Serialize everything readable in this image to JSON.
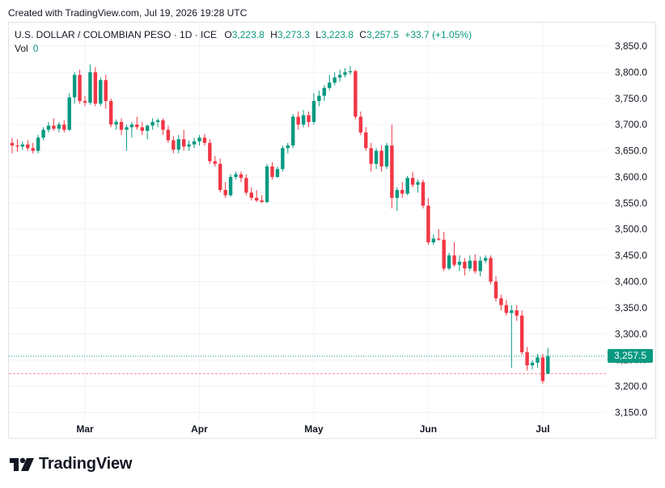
{
  "header": {
    "created_text": "Created with TradingView.com, Jul 19, 2026 19:28 UTC"
  },
  "legend": {
    "symbol": "U.S. DOLLAR / COLOMBIAN PESO · 1D · ICE",
    "o_label": "O",
    "o_value": "3,223.8",
    "h_label": "H",
    "h_value": "3,273.3",
    "l_label": "L",
    "l_value": "3,223.8",
    "c_label": "C",
    "c_value": "3,257.5",
    "change": "+33.7 (+1.05%)",
    "vol_label": "Vol",
    "vol_value": "0"
  },
  "last_price_label": "3,257.5",
  "colors": {
    "up": "#089981",
    "down": "#f23645",
    "grid": "#f0f3fa",
    "text": "#131722"
  },
  "footer": {
    "brand": "TradingView",
    "logo_icon": "tradingview-logo-icon"
  },
  "chart_data": {
    "type": "candlestick",
    "title": "U.S. DOLLAR / COLOMBIAN PESO · 1D · ICE",
    "ylim": [
      3130,
      3870
    ],
    "y_ticks": [
      3150,
      3200,
      3250,
      3300,
      3350,
      3400,
      3450,
      3500,
      3550,
      3600,
      3650,
      3700,
      3750,
      3800,
      3850
    ],
    "y_tick_labels": [
      "3,150.0",
      "3,200.0",
      "3,250.0",
      "3,300.0",
      "3,350.0",
      "3,400.0",
      "3,450.0",
      "3,500.0",
      "3,550.0",
      "3,600.0",
      "3,650.0",
      "3,700.0",
      "3,750.0",
      "3,800.0",
      "3,850.0"
    ],
    "x_tick_labels": [
      {
        "label": "Mar",
        "index": 14
      },
      {
        "label": "Apr",
        "index": 36
      },
      {
        "label": "May",
        "index": 58
      },
      {
        "label": "Jun",
        "index": 80
      },
      {
        "label": "Jul",
        "index": 102
      }
    ],
    "last_price": 3257.5,
    "grid": true,
    "candles": [
      {
        "o": 3665,
        "h": 3675,
        "l": 3645,
        "c": 3660
      },
      {
        "o": 3660,
        "h": 3672,
        "l": 3648,
        "c": 3658
      },
      {
        "o": 3658,
        "h": 3668,
        "l": 3652,
        "c": 3662
      },
      {
        "o": 3662,
        "h": 3670,
        "l": 3650,
        "c": 3655
      },
      {
        "o": 3655,
        "h": 3665,
        "l": 3645,
        "c": 3650
      },
      {
        "o": 3650,
        "h": 3680,
        "l": 3645,
        "c": 3675
      },
      {
        "o": 3675,
        "h": 3695,
        "l": 3670,
        "c": 3690
      },
      {
        "o": 3690,
        "h": 3705,
        "l": 3685,
        "c": 3698
      },
      {
        "o": 3698,
        "h": 3712,
        "l": 3688,
        "c": 3692
      },
      {
        "o": 3692,
        "h": 3705,
        "l": 3685,
        "c": 3700
      },
      {
        "o": 3700,
        "h": 3708,
        "l": 3685,
        "c": 3690
      },
      {
        "o": 3690,
        "h": 3760,
        "l": 3688,
        "c": 3752
      },
      {
        "o": 3752,
        "h": 3800,
        "l": 3740,
        "c": 3795
      },
      {
        "o": 3795,
        "h": 3805,
        "l": 3740,
        "c": 3745
      },
      {
        "o": 3745,
        "h": 3755,
        "l": 3735,
        "c": 3742
      },
      {
        "o": 3742,
        "h": 3815,
        "l": 3738,
        "c": 3800
      },
      {
        "o": 3800,
        "h": 3810,
        "l": 3735,
        "c": 3740
      },
      {
        "o": 3740,
        "h": 3790,
        "l": 3736,
        "c": 3785
      },
      {
        "o": 3785,
        "h": 3795,
        "l": 3730,
        "c": 3745
      },
      {
        "o": 3745,
        "h": 3750,
        "l": 3695,
        "c": 3700
      },
      {
        "o": 3700,
        "h": 3710,
        "l": 3690,
        "c": 3705
      },
      {
        "o": 3705,
        "h": 3712,
        "l": 3680,
        "c": 3690
      },
      {
        "o": 3690,
        "h": 3700,
        "l": 3650,
        "c": 3695
      },
      {
        "o": 3695,
        "h": 3705,
        "l": 3675,
        "c": 3700
      },
      {
        "o": 3700,
        "h": 3715,
        "l": 3690,
        "c": 3695
      },
      {
        "o": 3695,
        "h": 3705,
        "l": 3680,
        "c": 3688
      },
      {
        "o": 3688,
        "h": 3700,
        "l": 3672,
        "c": 3698
      },
      {
        "o": 3698,
        "h": 3712,
        "l": 3690,
        "c": 3705
      },
      {
        "o": 3705,
        "h": 3712,
        "l": 3695,
        "c": 3708
      },
      {
        "o": 3708,
        "h": 3712,
        "l": 3680,
        "c": 3690
      },
      {
        "o": 3690,
        "h": 3698,
        "l": 3665,
        "c": 3670
      },
      {
        "o": 3670,
        "h": 3678,
        "l": 3645,
        "c": 3652
      },
      {
        "o": 3652,
        "h": 3680,
        "l": 3645,
        "c": 3672
      },
      {
        "o": 3672,
        "h": 3690,
        "l": 3650,
        "c": 3658
      },
      {
        "o": 3658,
        "h": 3670,
        "l": 3650,
        "c": 3662
      },
      {
        "o": 3662,
        "h": 3675,
        "l": 3655,
        "c": 3668
      },
      {
        "o": 3668,
        "h": 3680,
        "l": 3660,
        "c": 3675
      },
      {
        "o": 3675,
        "h": 3682,
        "l": 3660,
        "c": 3665
      },
      {
        "o": 3665,
        "h": 3672,
        "l": 3625,
        "c": 3630
      },
      {
        "o": 3630,
        "h": 3640,
        "l": 3620,
        "c": 3625
      },
      {
        "o": 3625,
        "h": 3635,
        "l": 3570,
        "c": 3575
      },
      {
        "o": 3575,
        "h": 3590,
        "l": 3560,
        "c": 3565
      },
      {
        "o": 3565,
        "h": 3605,
        "l": 3562,
        "c": 3600
      },
      {
        "o": 3600,
        "h": 3610,
        "l": 3595,
        "c": 3605
      },
      {
        "o": 3605,
        "h": 3610,
        "l": 3590,
        "c": 3598
      },
      {
        "o": 3598,
        "h": 3605,
        "l": 3565,
        "c": 3570
      },
      {
        "o": 3570,
        "h": 3580,
        "l": 3555,
        "c": 3560
      },
      {
        "o": 3560,
        "h": 3575,
        "l": 3552,
        "c": 3555
      },
      {
        "o": 3555,
        "h": 3565,
        "l": 3550,
        "c": 3552
      },
      {
        "o": 3552,
        "h": 3625,
        "l": 3550,
        "c": 3620
      },
      {
        "o": 3620,
        "h": 3628,
        "l": 3595,
        "c": 3600
      },
      {
        "o": 3600,
        "h": 3620,
        "l": 3598,
        "c": 3615
      },
      {
        "o": 3615,
        "h": 3660,
        "l": 3610,
        "c": 3655
      },
      {
        "o": 3655,
        "h": 3665,
        "l": 3645,
        "c": 3660
      },
      {
        "o": 3660,
        "h": 3720,
        "l": 3655,
        "c": 3715
      },
      {
        "o": 3715,
        "h": 3725,
        "l": 3690,
        "c": 3700
      },
      {
        "o": 3700,
        "h": 3728,
        "l": 3695,
        "c": 3718
      },
      {
        "o": 3718,
        "h": 3725,
        "l": 3695,
        "c": 3705
      },
      {
        "o": 3705,
        "h": 3760,
        "l": 3700,
        "c": 3745
      },
      {
        "o": 3745,
        "h": 3765,
        "l": 3735,
        "c": 3755
      },
      {
        "o": 3755,
        "h": 3775,
        "l": 3745,
        "c": 3770
      },
      {
        "o": 3770,
        "h": 3795,
        "l": 3765,
        "c": 3780
      },
      {
        "o": 3780,
        "h": 3800,
        "l": 3775,
        "c": 3790
      },
      {
        "o": 3790,
        "h": 3805,
        "l": 3782,
        "c": 3795
      },
      {
        "o": 3795,
        "h": 3808,
        "l": 3790,
        "c": 3800
      },
      {
        "o": 3800,
        "h": 3812,
        "l": 3795,
        "c": 3802
      },
      {
        "o": 3802,
        "h": 3805,
        "l": 3710,
        "c": 3715
      },
      {
        "o": 3715,
        "h": 3725,
        "l": 3680,
        "c": 3685
      },
      {
        "o": 3685,
        "h": 3695,
        "l": 3650,
        "c": 3655
      },
      {
        "o": 3655,
        "h": 3665,
        "l": 3610,
        "c": 3625
      },
      {
        "o": 3625,
        "h": 3655,
        "l": 3615,
        "c": 3650
      },
      {
        "o": 3650,
        "h": 3660,
        "l": 3610,
        "c": 3620
      },
      {
        "o": 3620,
        "h": 3665,
        "l": 3615,
        "c": 3660
      },
      {
        "o": 3660,
        "h": 3700,
        "l": 3540,
        "c": 3560
      },
      {
        "o": 3560,
        "h": 3580,
        "l": 3535,
        "c": 3575
      },
      {
        "o": 3575,
        "h": 3590,
        "l": 3560,
        "c": 3568
      },
      {
        "o": 3568,
        "h": 3602,
        "l": 3565,
        "c": 3598
      },
      {
        "o": 3598,
        "h": 3610,
        "l": 3580,
        "c": 3585
      },
      {
        "o": 3585,
        "h": 3595,
        "l": 3570,
        "c": 3590
      },
      {
        "o": 3590,
        "h": 3595,
        "l": 3540,
        "c": 3545
      },
      {
        "o": 3545,
        "h": 3560,
        "l": 3470,
        "c": 3475
      },
      {
        "o": 3475,
        "h": 3490,
        "l": 3470,
        "c": 3482
      },
      {
        "o": 3482,
        "h": 3500,
        "l": 3478,
        "c": 3480
      },
      {
        "o": 3480,
        "h": 3495,
        "l": 3420,
        "c": 3425
      },
      {
        "o": 3425,
        "h": 3455,
        "l": 3422,
        "c": 3450
      },
      {
        "o": 3450,
        "h": 3475,
        "l": 3428,
        "c": 3432
      },
      {
        "o": 3432,
        "h": 3450,
        "l": 3420,
        "c": 3438
      },
      {
        "o": 3438,
        "h": 3445,
        "l": 3412,
        "c": 3425
      },
      {
        "o": 3425,
        "h": 3450,
        "l": 3420,
        "c": 3440
      },
      {
        "o": 3440,
        "h": 3452,
        "l": 3415,
        "c": 3420
      },
      {
        "o": 3420,
        "h": 3448,
        "l": 3410,
        "c": 3440
      },
      {
        "o": 3440,
        "h": 3450,
        "l": 3435,
        "c": 3445
      },
      {
        "o": 3445,
        "h": 3450,
        "l": 3395,
        "c": 3400
      },
      {
        "o": 3400,
        "h": 3410,
        "l": 3362,
        "c": 3368
      },
      {
        "o": 3368,
        "h": 3375,
        "l": 3345,
        "c": 3355
      },
      {
        "o": 3355,
        "h": 3365,
        "l": 3335,
        "c": 3340
      },
      {
        "o": 3340,
        "h": 3355,
        "l": 3235,
        "c": 3345
      },
      {
        "o": 3345,
        "h": 3355,
        "l": 3325,
        "c": 3335
      },
      {
        "o": 3335,
        "h": 3345,
        "l": 3260,
        "c": 3265
      },
      {
        "o": 3265,
        "h": 3275,
        "l": 3230,
        "c": 3240
      },
      {
        "o": 3240,
        "h": 3250,
        "l": 3232,
        "c": 3245
      },
      {
        "o": 3245,
        "h": 3262,
        "l": 3235,
        "c": 3255
      },
      {
        "o": 3255,
        "h": 3262,
        "l": 3205,
        "c": 3210
      },
      {
        "o": 3223.8,
        "h": 3273.3,
        "l": 3223.8,
        "c": 3257.5
      }
    ]
  }
}
